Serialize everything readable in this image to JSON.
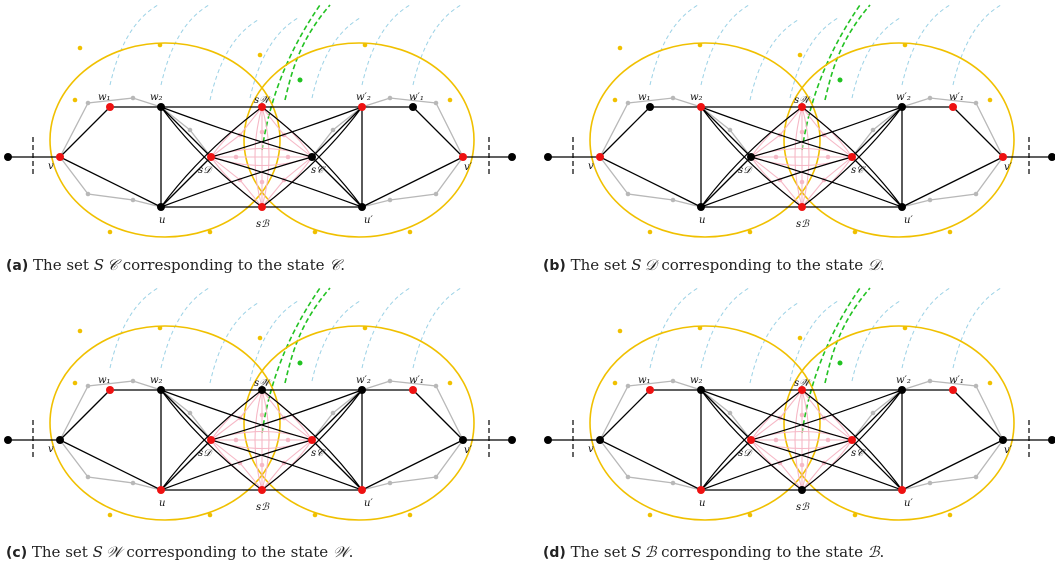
{
  "panels": [
    {
      "tag": "(a)",
      "caption": {
        "pre": "The set ",
        "set": "S 𝒞",
        "mid": " corresponding to the state ",
        "state": "𝒞",
        "post": "."
      },
      "red": [
        "v",
        "w1",
        "w2p",
        "sW",
        "sD",
        "sB",
        "vp"
      ]
    },
    {
      "tag": "(b)",
      "caption": {
        "pre": "The set ",
        "set": "S 𝒟",
        "mid": " corresponding to the state ",
        "state": "𝒟",
        "post": "."
      },
      "red": [
        "v",
        "w2",
        "w1p",
        "sW",
        "sC",
        "sB",
        "vp"
      ]
    },
    {
      "tag": "(c)",
      "caption": {
        "pre": "The set ",
        "set": "S 𝒲",
        "mid": " corresponding to the state ",
        "state": "𝒲",
        "post": "."
      },
      "red": [
        "w1",
        "w1p",
        "sD",
        "sC",
        "u",
        "sB",
        "up"
      ]
    },
    {
      "tag": "(d)",
      "caption": {
        "pre": "The set ",
        "set": "S ℬ",
        "mid": " corresponding to the state ",
        "state": "ℬ",
        "post": "."
      },
      "red": [
        "w1",
        "w1p",
        "sW",
        "sD",
        "sC",
        "u",
        "up"
      ]
    }
  ],
  "labels": {
    "v": "v",
    "vp": "v′",
    "u": "u",
    "up": "u′",
    "w1": "w₁",
    "w2": "w₂",
    "w1p": "w′₁",
    "w2p": "w′₂",
    "sW": "s𝒲",
    "sB": "sℬ",
    "sC": "s𝒞",
    "sD": "s𝒟"
  },
  "colors": {
    "selected": "#ee1111",
    "unselected": "#000000",
    "edge": "#000000",
    "gray": "#b8b8b8",
    "pink": "#f6b8c6",
    "yellow": "#f0c000",
    "cyan": "#9cd2e6",
    "green": "#22c222"
  }
}
